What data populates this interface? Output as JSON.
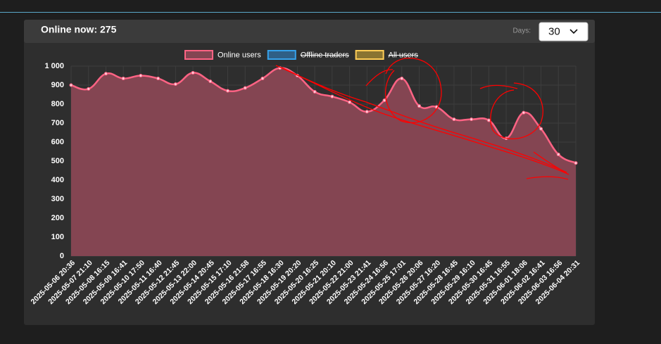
{
  "header": {
    "title": "Online now: 275",
    "days_label": "Days:",
    "days_value": "30"
  },
  "chart_data": {
    "type": "area",
    "categories": [
      "2025-05-06 20:36",
      "2025-05-07 21:10",
      "2025-05-08 16:15",
      "2025-05-09 16:41",
      "2025-05-10 17:50",
      "2025-05-11 16:40",
      "2025-05-12 21:45",
      "2025-05-13 22:00",
      "2025-05-14 20:45",
      "2025-05-15 17:10",
      "2025-05-16 21:58",
      "2025-05-17 16:55",
      "2025-05-18 16:30",
      "2025-05-19 20:20",
      "2025-05-20 16:25",
      "2025-05-21 20:10",
      "2025-05-22 21:00",
      "2025-05-23 21:41",
      "2025-05-24 16:56",
      "2025-05-25 17:01",
      "2025-05-26 20:06",
      "2025-05-27 16:20",
      "2025-05-28 16:45",
      "2025-05-29 16:10",
      "2025-05-30 16:45",
      "2025-05-31 16:55",
      "2025-06-01 18:06",
      "2025-06-02 16:41",
      "2025-06-03 16:56",
      "2025-06-04 20:31"
    ],
    "series": [
      {
        "name": "Online users",
        "color": "#ff6384",
        "fill": "#844552",
        "hidden": false,
        "values": [
          900,
          880,
          960,
          935,
          950,
          935,
          905,
          965,
          920,
          870,
          885,
          935,
          990,
          950,
          865,
          840,
          810,
          760,
          820,
          935,
          790,
          785,
          720,
          720,
          715,
          620,
          755,
          670,
          535,
          490
        ]
      },
      {
        "name": "Offline traders",
        "color": "#36a2eb",
        "fill": "#2f5f86",
        "hidden": true,
        "values": [
          null,
          null,
          null,
          null,
          null,
          null,
          null,
          null,
          null,
          null,
          null,
          null,
          null,
          null,
          null,
          null,
          null,
          null,
          null,
          null,
          null,
          null,
          null,
          null,
          null,
          null,
          null,
          null,
          null,
          null
        ]
      },
      {
        "name": "All users",
        "color": "#ffcd56",
        "fill": "#8a7431",
        "hidden": true,
        "values": [
          null,
          null,
          null,
          null,
          null,
          null,
          null,
          null,
          null,
          null,
          null,
          null,
          null,
          null,
          null,
          null,
          null,
          null,
          null,
          null,
          null,
          null,
          null,
          null,
          null,
          null,
          null,
          null,
          null,
          null
        ]
      }
    ],
    "ylim": [
      0,
      1000
    ],
    "yticks": [
      0,
      100,
      200,
      300,
      400,
      500,
      600,
      700,
      800,
      900,
      {
        "value": 1000,
        "label": "1 000"
      }
    ],
    "grid": true
  }
}
